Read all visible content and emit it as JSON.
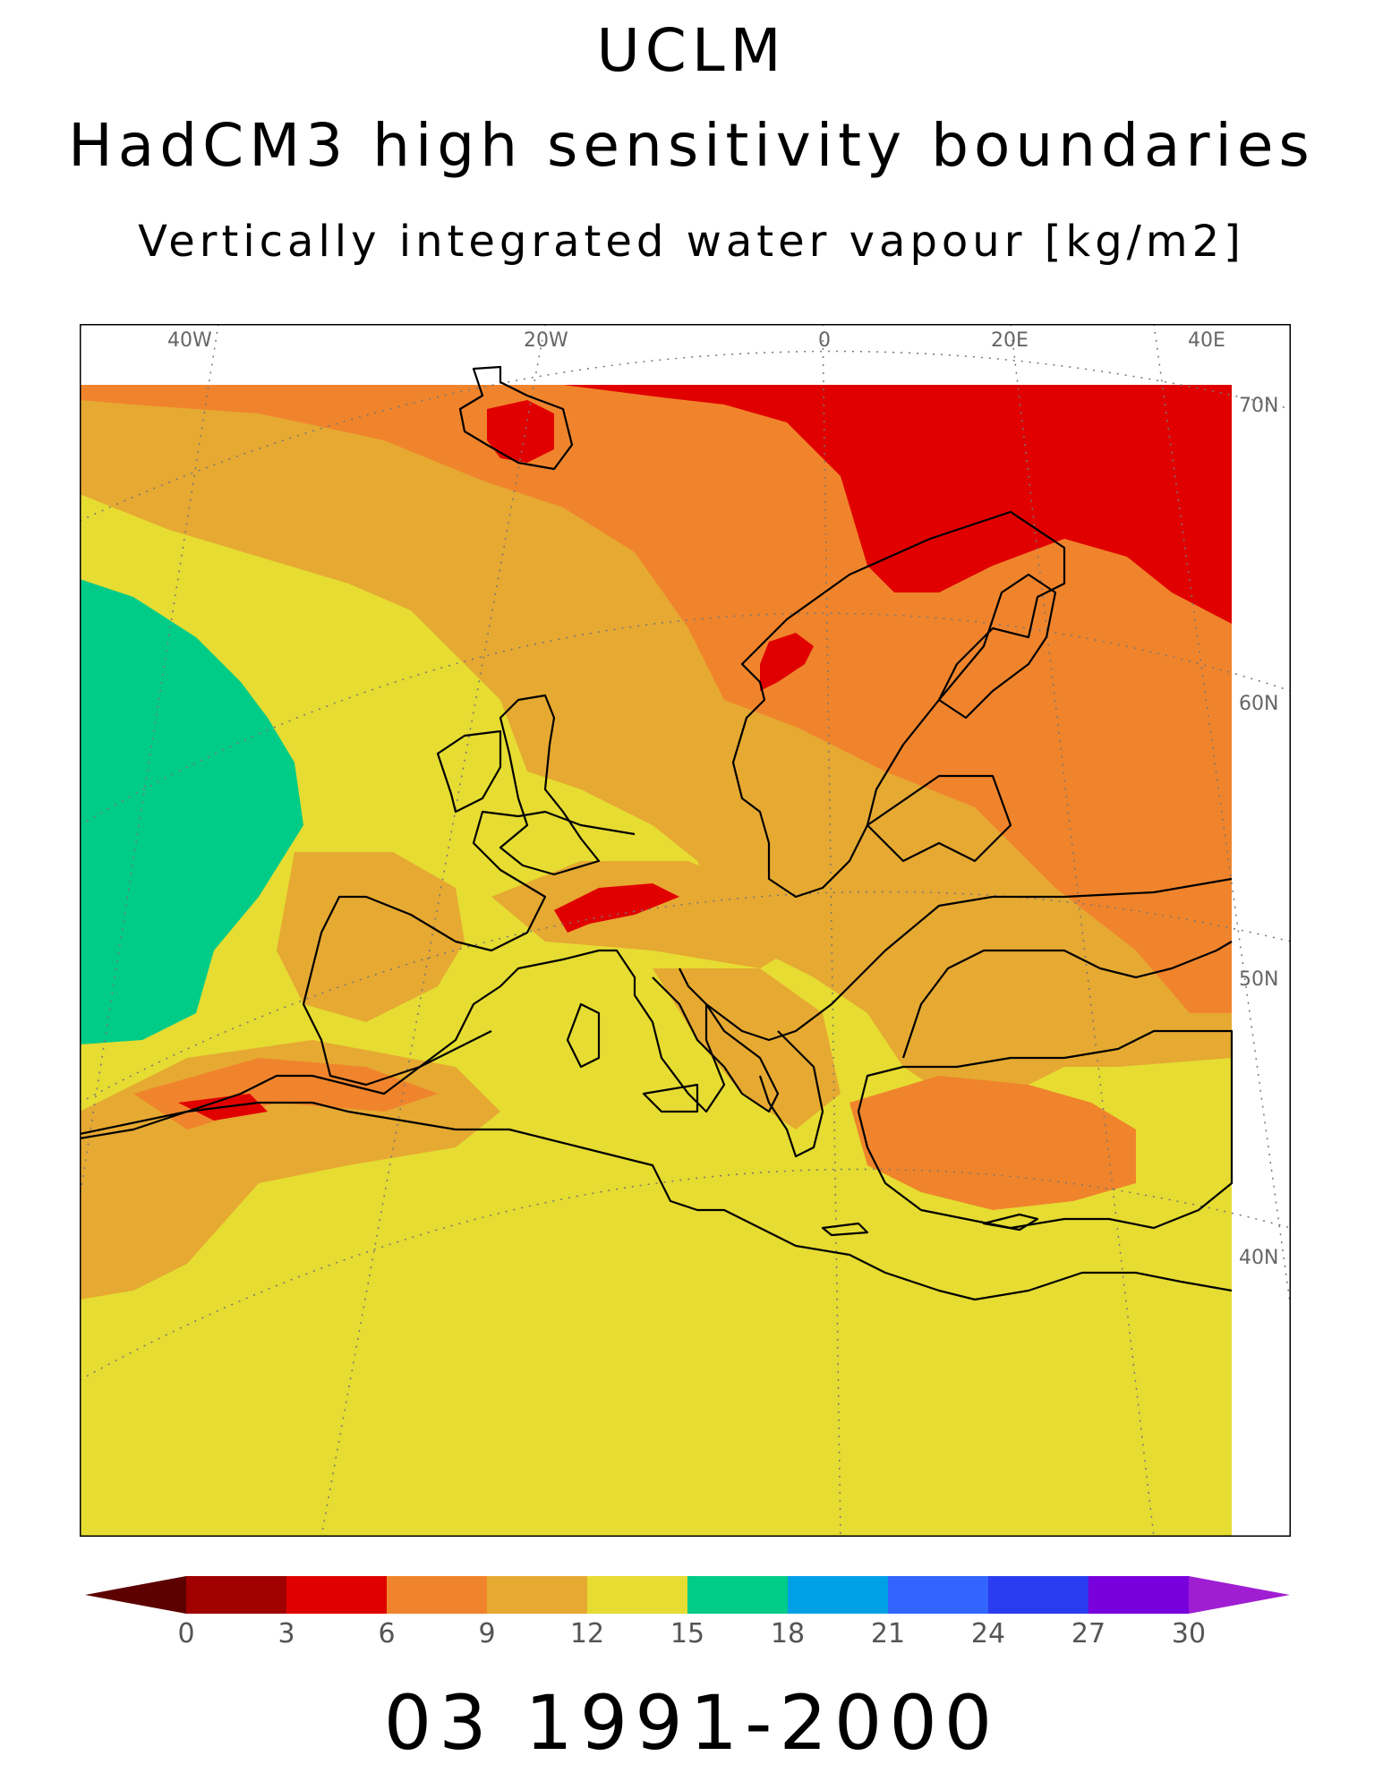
{
  "header": {
    "line1": "UCLM",
    "line2": "HadCM3 high sensitivity boundaries",
    "line3": "Vertically integrated water vapour [kg/m2]"
  },
  "footer": {
    "period": "03 1991-2000"
  },
  "map": {
    "region": "Europe",
    "variable": "vertically integrated water vapour",
    "unit": "kg/m2",
    "lon_labels": [
      "40W",
      "20W",
      "0",
      "20E",
      "40E"
    ],
    "lat_labels": [
      "70N",
      "60N",
      "50N",
      "40N"
    ]
  },
  "colorbar": {
    "ticks": [
      "0",
      "3",
      "6",
      "9",
      "12",
      "15",
      "18",
      "21",
      "24",
      "27",
      "30"
    ],
    "colors": [
      "#5c0000",
      "#a00000",
      "#e00000",
      "#f0842c",
      "#e6a932",
      "#e6dc32",
      "#00cc88",
      "#00a0e6",
      "#3264ff",
      "#2a3cf0",
      "#7800dc",
      "#a01ed2"
    ],
    "extend": "both"
  }
}
